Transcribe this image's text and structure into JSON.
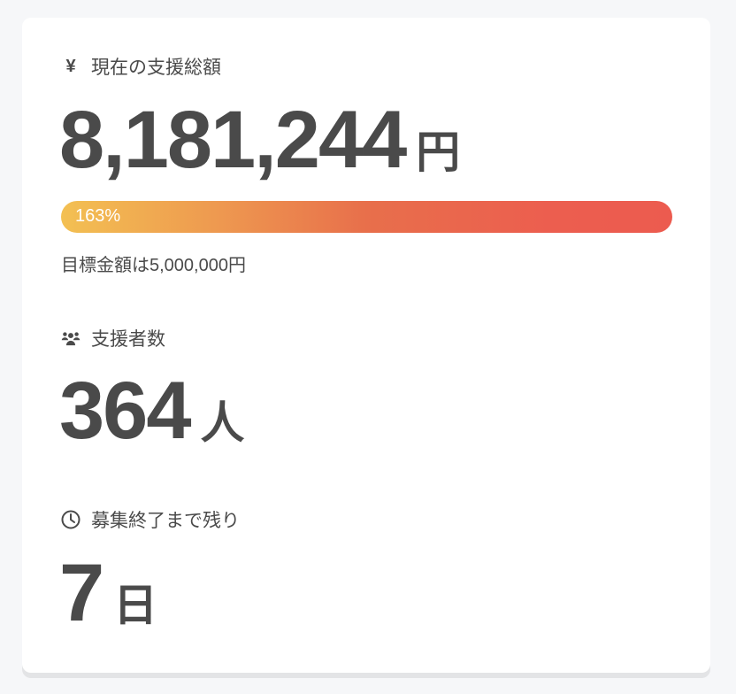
{
  "funding": {
    "label": "現在の支援総額",
    "icon": "yen-icon",
    "amount": "8,181,244",
    "unit": "円",
    "progress_percent": 163,
    "progress_label": "163%",
    "goal_text": "目標金額は5,000,000円",
    "gradient_colors": [
      "#f3c052",
      "#ec5b4f"
    ]
  },
  "supporters": {
    "label": "支援者数",
    "icon": "users-icon",
    "count": "364",
    "unit": "人"
  },
  "remaining": {
    "label": "募集終了まで残り",
    "icon": "clock-icon",
    "value": "7",
    "unit": "日"
  }
}
